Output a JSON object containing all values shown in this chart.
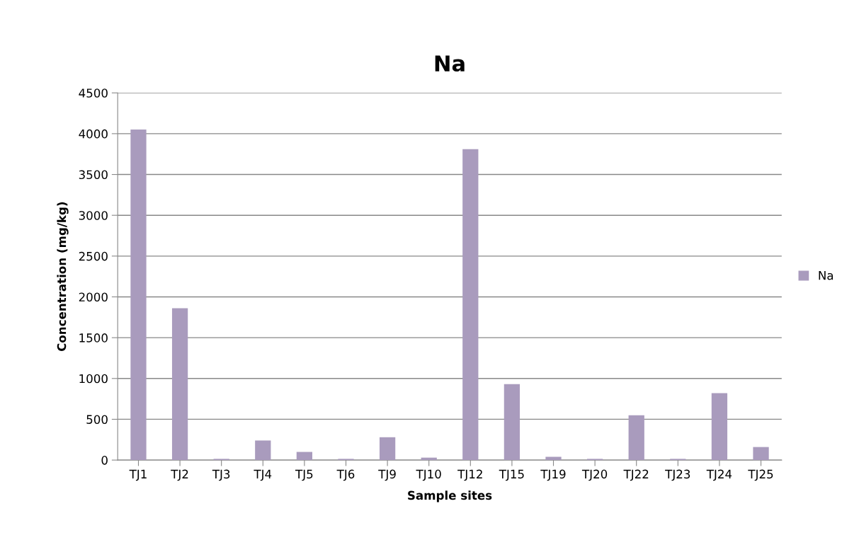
{
  "chart_data": {
    "type": "bar",
    "title": "Na",
    "xlabel": "Sample sites",
    "ylabel": "Concentration (mg/kg)",
    "categories": [
      "TJ1",
      "TJ2",
      "TJ3",
      "TJ4",
      "TJ5",
      "TJ6",
      "TJ9",
      "TJ10",
      "TJ12",
      "TJ15",
      "TJ19",
      "TJ20",
      "TJ22",
      "TJ23",
      "TJ24",
      "TJ25"
    ],
    "series": [
      {
        "name": "Na",
        "color": "#a99bbd",
        "values": [
          4050,
          1860,
          15,
          240,
          100,
          15,
          280,
          30,
          3810,
          930,
          40,
          15,
          550,
          15,
          820,
          160
        ]
      }
    ],
    "ylim": [
      0,
      4500
    ],
    "yticks": [
      0,
      500,
      1000,
      1500,
      2000,
      2500,
      3000,
      3500,
      4000,
      4500
    ],
    "grid": "y",
    "legend": "right"
  }
}
